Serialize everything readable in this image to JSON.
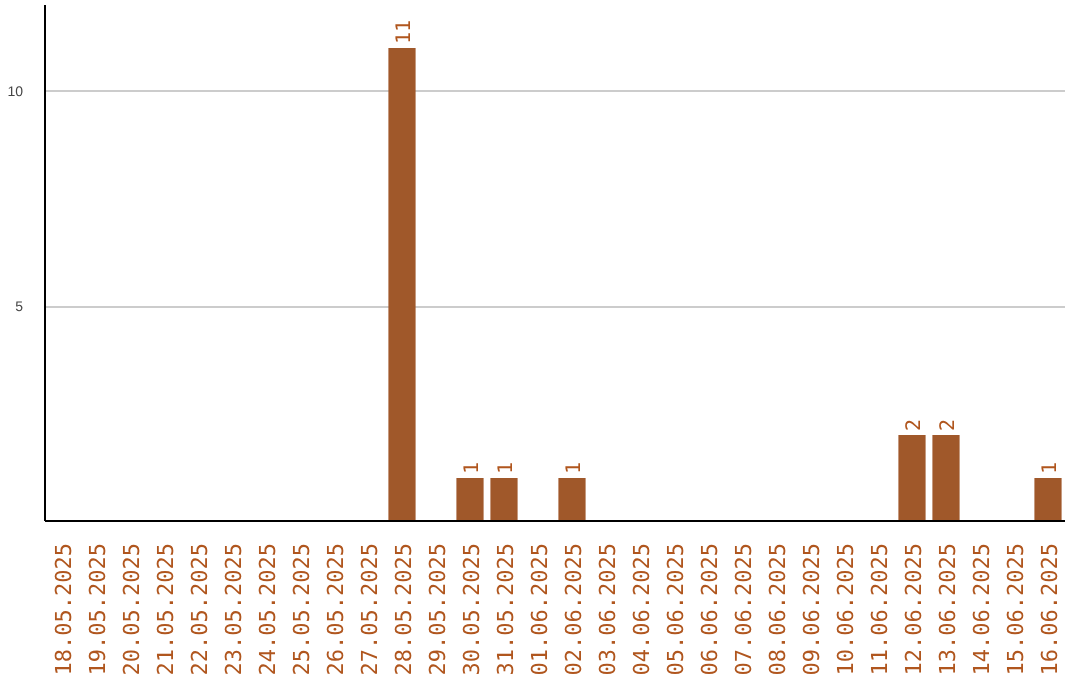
{
  "chart_data": {
    "type": "bar",
    "categories": [
      "18.05.2025",
      "19.05.2025",
      "20.05.2025",
      "21.05.2025",
      "22.05.2025",
      "23.05.2025",
      "24.05.2025",
      "25.05.2025",
      "26.05.2025",
      "27.05.2025",
      "28.05.2025",
      "29.05.2025",
      "30.05.2025",
      "31.05.2025",
      "01.06.2025",
      "02.06.2025",
      "03.06.2025",
      "04.06.2025",
      "05.06.2025",
      "06.06.2025",
      "07.06.2025",
      "08.06.2025",
      "09.06.2025",
      "10.06.2025",
      "11.06.2025",
      "12.06.2025",
      "13.06.2025",
      "14.06.2025",
      "15.06.2025",
      "16.06.2025"
    ],
    "values": [
      0,
      0,
      0,
      0,
      0,
      0,
      0,
      0,
      0,
      0,
      11,
      0,
      1,
      1,
      0,
      1,
      0,
      0,
      0,
      0,
      0,
      0,
      0,
      0,
      0,
      2,
      2,
      0,
      0,
      1
    ],
    "value_labels": [
      null,
      null,
      null,
      null,
      null,
      null,
      null,
      null,
      null,
      null,
      "11",
      null,
      "1",
      "1",
      null,
      "1",
      null,
      null,
      null,
      null,
      null,
      null,
      null,
      null,
      null,
      "2",
      "2",
      null,
      null,
      "1"
    ],
    "color": "#a0582a",
    "ylim": [
      0,
      12
    ],
    "yticks": [
      5,
      10
    ],
    "grid": "y"
  }
}
